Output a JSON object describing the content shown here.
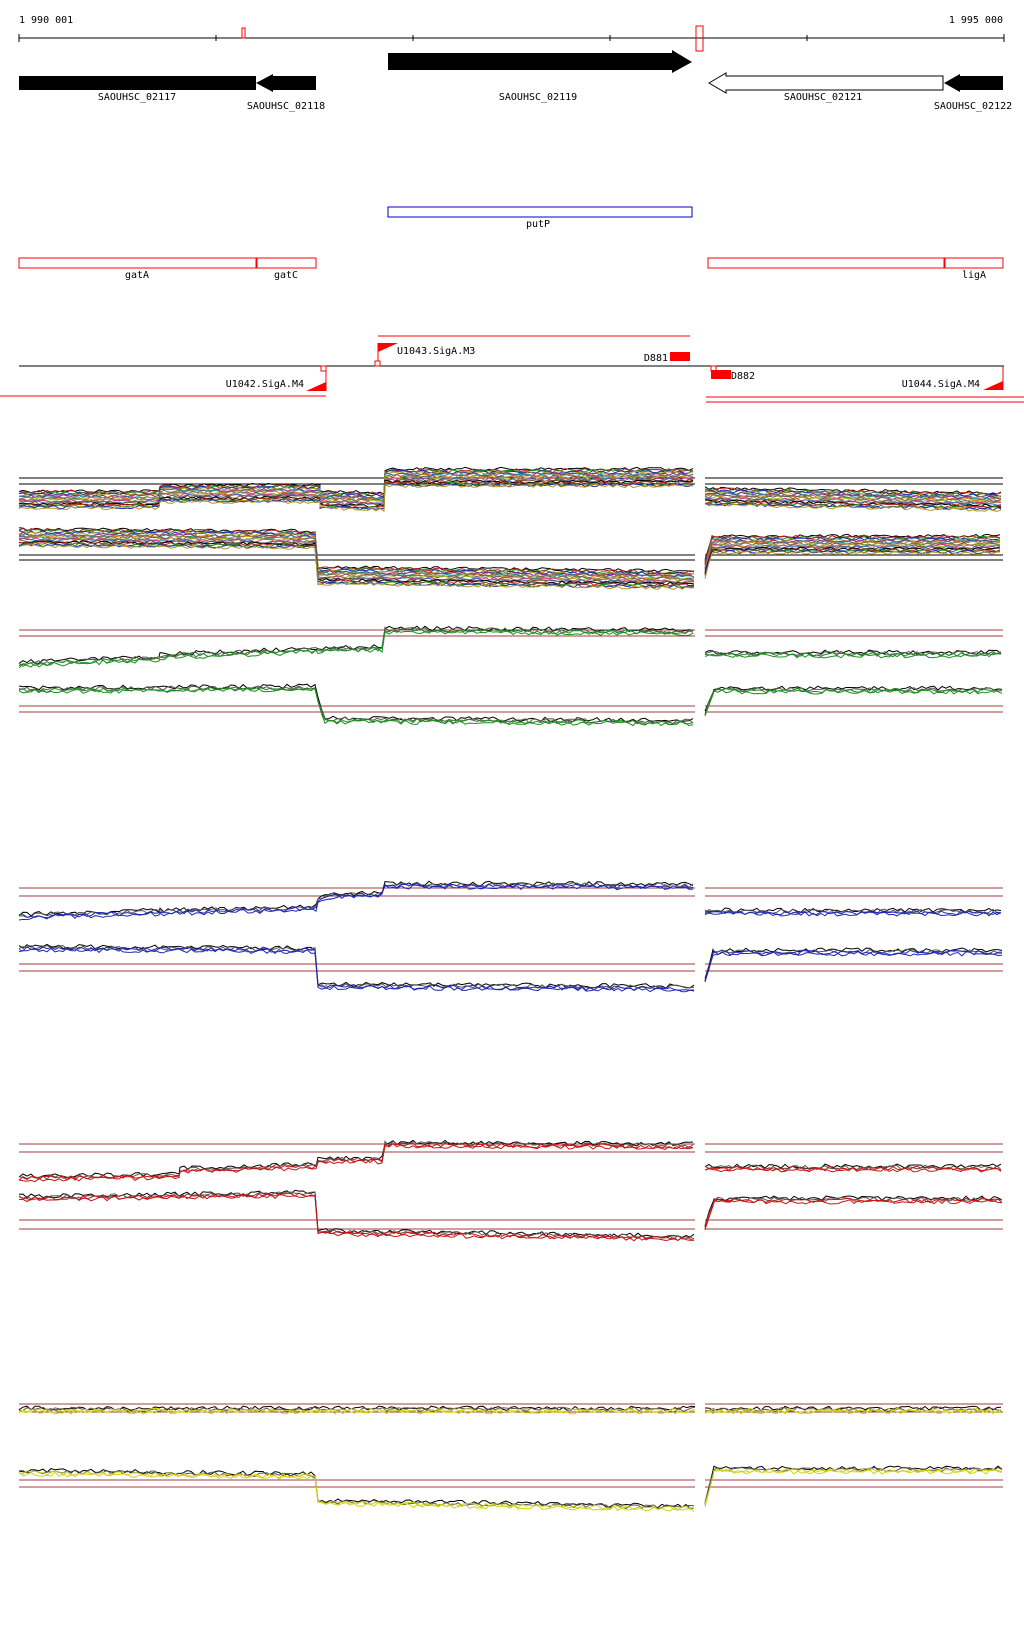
{
  "coordinates": {
    "start_label": "1 990 001",
    "end_label": "1 995 000"
  },
  "genes": [
    {
      "id": "SAOUHSC_02117",
      "label": "SAOUHSC_02117",
      "strand": "+",
      "filled": true
    },
    {
      "id": "SAOUHSC_02118",
      "label": "SAOUHSC_02118",
      "strand": "-",
      "filled": true
    },
    {
      "id": "SAOUHSC_02119",
      "label": "SAOUHSC_02119",
      "strand": "+",
      "filled": true
    },
    {
      "id": "SAOUHSC_02121",
      "label": "SAOUHSC_02121",
      "strand": "-",
      "filled": false
    },
    {
      "id": "SAOUHSC_02122",
      "label": "SAOUHSC_02122",
      "strand": "-",
      "filled": true
    }
  ],
  "gene_names_blue": [
    {
      "label": "putP"
    }
  ],
  "gene_names_red": [
    {
      "label": "gatA"
    },
    {
      "label": "gatC"
    },
    {
      "label": "ligA"
    }
  ],
  "features": [
    {
      "label": "U1043.SigA.M3",
      "kind": "promoter"
    },
    {
      "label": "D881",
      "kind": "terminator"
    },
    {
      "label": "U1042.SigA.M4",
      "kind": "promoter"
    },
    {
      "label": "D882",
      "kind": "terminator"
    },
    {
      "label": "U1044.SigA.M4",
      "kind": "promoter"
    }
  ],
  "tracks": [
    {
      "name": "all-conditions",
      "color": "multi"
    },
    {
      "name": "green-condition",
      "color": "#1e8c1e"
    },
    {
      "name": "blue-condition",
      "color": "#1e28b4"
    },
    {
      "name": "red-condition",
      "color": "#c81414"
    },
    {
      "name": "yellow-condition",
      "color": "#d2d214"
    }
  ],
  "colors": {
    "guide": "#a03c3c",
    "feature_red": "#ff0000",
    "gene_blue": "#0000cc"
  }
}
